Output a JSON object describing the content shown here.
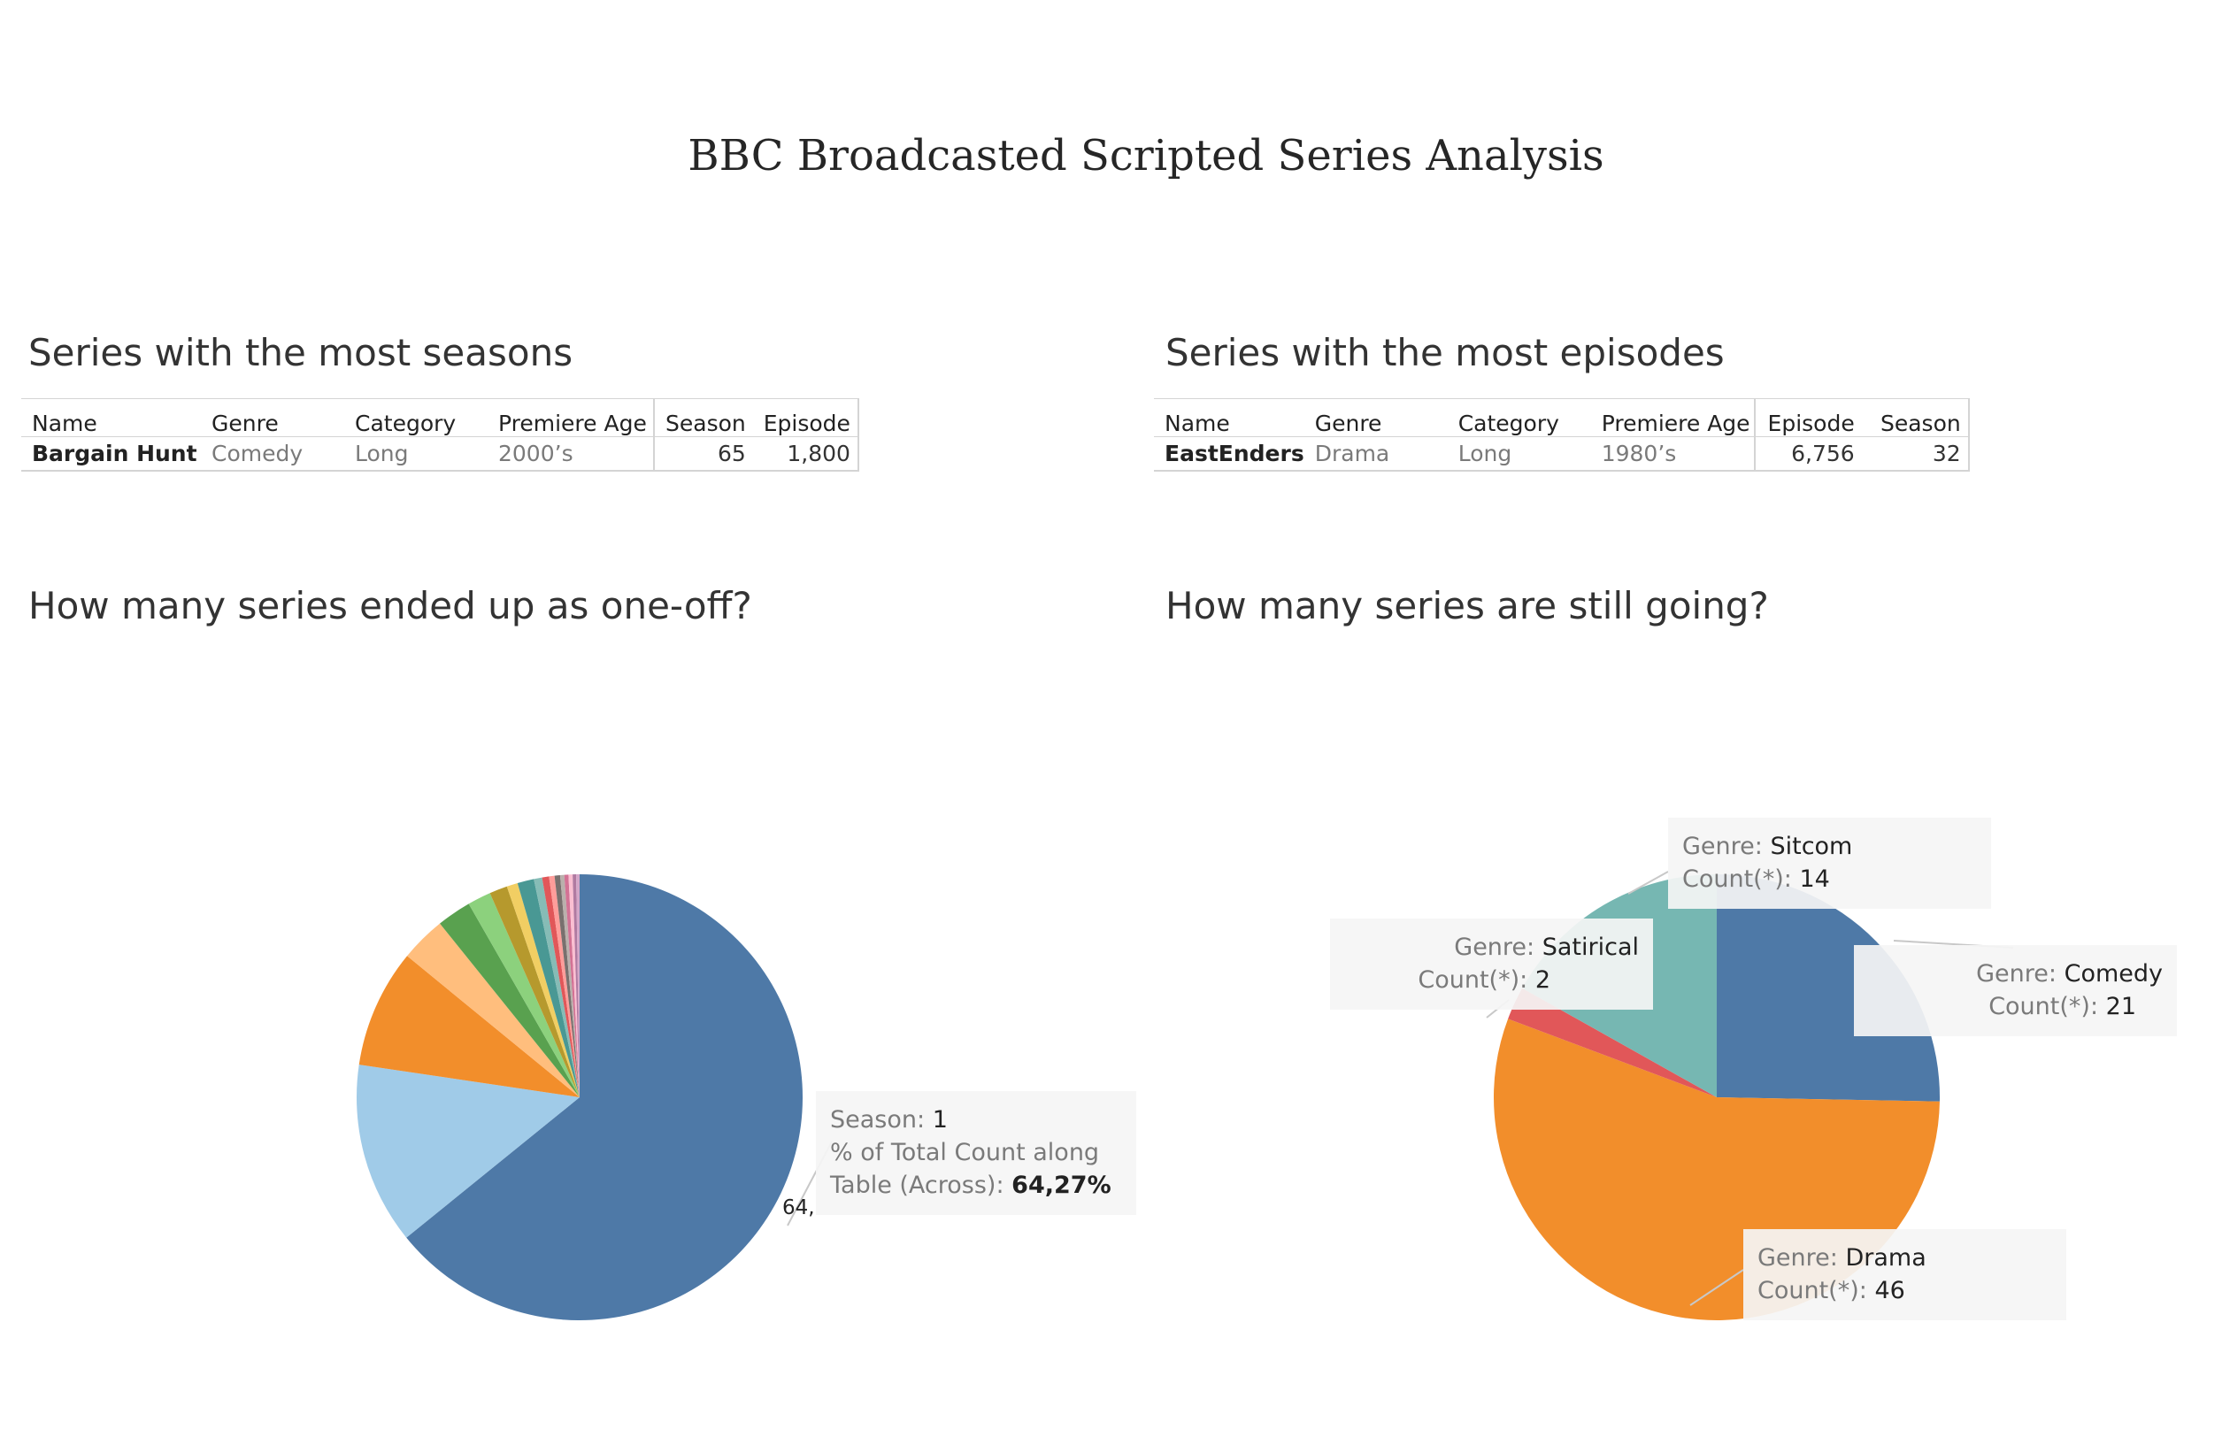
{
  "dashboard": {
    "title": "BBC Broadcasted Scripted Series Analysis"
  },
  "seasons_section": {
    "title": "Series with the most seasons",
    "headers": {
      "name": "Name",
      "genre": "Genre",
      "category": "Category",
      "premiere_age": "Premiere Age",
      "season": "Season",
      "episode": "Episode"
    },
    "row": {
      "name": "Bargain Hunt",
      "genre": "Comedy",
      "category": "Long",
      "premiere_age": "2000’s",
      "season": "65",
      "episode": "1,800"
    }
  },
  "episodes_section": {
    "title": "Series with the most episodes",
    "headers": {
      "name": "Name",
      "genre": "Genre",
      "category": "Category",
      "premiere_age": "Premiere Age",
      "episode": "Episode",
      "season": "Season"
    },
    "row": {
      "name": "EastEnders",
      "genre": "Drama",
      "category": "Long",
      "premiere_age": "1980’s",
      "episode": "6,756",
      "season": "32"
    }
  },
  "oneoff_section": {
    "title": "How many series ended up as one-off?",
    "tooltip": {
      "season_label": "Season:",
      "season_value": "1",
      "pct_label_line1": "% of Total Count along",
      "pct_label_line2": "Table (Across):",
      "pct_value": "64,27%"
    },
    "partial_label": "64,"
  },
  "going_section": {
    "title": "How many series are still going?",
    "genre_label": "Genre:",
    "count_label": "Count(*):"
  },
  "chart_data": [
    {
      "type": "pie",
      "title": "How many series ended up as one-off?",
      "measure": "% of Total Count along Table (Across)",
      "slices": [
        {
          "label": "1",
          "value": 64.27,
          "color": "#4e79a7"
        },
        {
          "value": 13.2,
          "color": "#a0cbe8"
        },
        {
          "value": 8.6,
          "color": "#f28e2b"
        },
        {
          "value": 3.3,
          "color": "#ffbe7d"
        },
        {
          "value": 2.5,
          "color": "#59a14f"
        },
        {
          "value": 1.7,
          "color": "#8cd17d"
        },
        {
          "value": 1.3,
          "color": "#b6992d"
        },
        {
          "value": 0.8,
          "color": "#f1ce63"
        },
        {
          "value": 1.2,
          "color": "#499894"
        },
        {
          "value": 0.6,
          "color": "#86bcb6"
        },
        {
          "value": 0.5,
          "color": "#e15759"
        },
        {
          "value": 0.4,
          "color": "#ff9d9a"
        },
        {
          "value": 0.4,
          "color": "#79706e"
        },
        {
          "value": 0.3,
          "color": "#bab0ac"
        },
        {
          "value": 0.3,
          "color": "#d37295"
        },
        {
          "value": 0.3,
          "color": "#fabfd2"
        },
        {
          "value": 0.25,
          "color": "#b07aa1"
        },
        {
          "value": 0.25,
          "color": "#d4a6c8"
        }
      ]
    },
    {
      "type": "pie",
      "title": "How many series are still going?",
      "measure": "Count(*)",
      "slices": [
        {
          "label": "Comedy",
          "value": 21,
          "color": "#4e79a7"
        },
        {
          "label": "Drama",
          "value": 46,
          "color": "#f28e2b"
        },
        {
          "label": "Satirical",
          "value": 2,
          "color": "#e15759"
        },
        {
          "label": "Sitcom",
          "value": 14,
          "color": "#76b7b2"
        }
      ]
    }
  ]
}
